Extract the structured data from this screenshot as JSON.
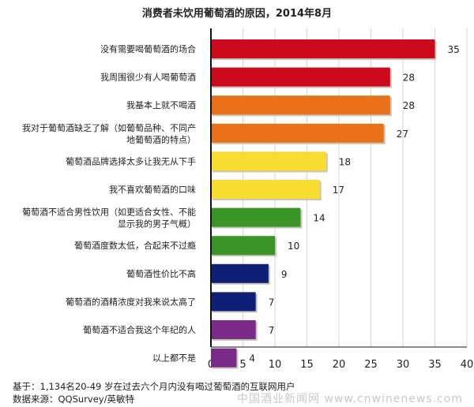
{
  "chart_data": {
    "type": "bar",
    "orientation": "horizontal",
    "title": "消费者未饮用葡萄酒的原因，2014年8月",
    "categories": [
      [
        "没有需要喝葡萄酒的场合"
      ],
      [
        "我周围很少有人喝葡萄酒"
      ],
      [
        "我基本上就不喝酒"
      ],
      [
        "我对于葡萄酒缺乏了解（如葡萄品种、不同产",
        "地葡萄酒的特点）"
      ],
      [
        "葡萄酒品牌选择太多让我无从下手"
      ],
      [
        "我不喜欢葡萄酒的口味"
      ],
      [
        "葡萄酒不适合男性饮用（如更适合女性、不能",
        "显示我的男子气概）"
      ],
      [
        "葡萄酒度数太低，合起来不过瘾"
      ],
      [
        "葡萄酒性价比不高"
      ],
      [
        "葡萄酒的酒精浓度对我来说太高了"
      ],
      [
        "葡萄酒不适合我这个年纪的人"
      ],
      [
        "以上都不是"
      ]
    ],
    "values": [
      35,
      28,
      28,
      27,
      18,
      17,
      14,
      10,
      9,
      7,
      7,
      4
    ],
    "colors": [
      "#cc0a1c",
      "#cc0a1c",
      "#e8711a",
      "#e8711a",
      "#f8dc30",
      "#f8dc30",
      "#3a9526",
      "#3a9526",
      "#0f1f78",
      "#0f1f78",
      "#7a2a88",
      "#7a2a88"
    ],
    "xlim": [
      0,
      40
    ],
    "xticks": [
      0,
      5,
      10,
      15,
      20,
      25,
      30,
      35,
      40
    ],
    "grid": true,
    "xlabel": "",
    "ylabel": ""
  },
  "footer": {
    "base": "基于：1,134名20-49 岁在过去六个月内没有喝过葡萄酒的互联网用户",
    "source": "数据来源：QQSurvey/英敏特"
  },
  "watermark": "中国酒业新闻网 www.cnwinenews.com"
}
